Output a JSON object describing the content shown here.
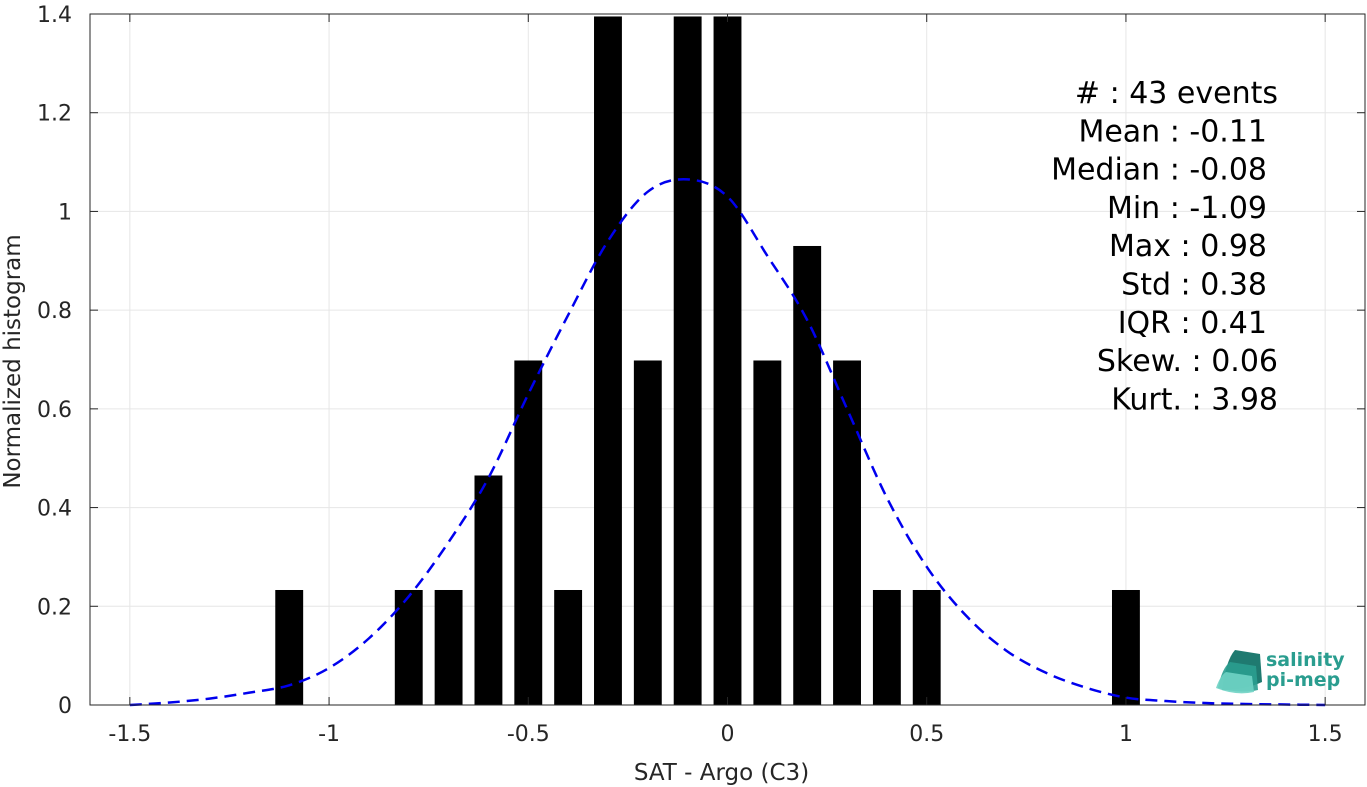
{
  "chart_data": {
    "type": "bar",
    "xlabel": "SAT - Argo (C3)",
    "ylabel": "Normalized histogram",
    "xlim": [
      -1.6,
      1.6
    ],
    "ylim": [
      0,
      1.4
    ],
    "xticks": [
      -1.5,
      -1,
      -0.5,
      0,
      0.5,
      1,
      1.5
    ],
    "xtick_labels": [
      "-1.5",
      "-1",
      "-0.5",
      "0",
      "0.5",
      "1",
      "1.5"
    ],
    "yticks": [
      0,
      0.2,
      0.4,
      0.6,
      0.8,
      1,
      1.2,
      1.4
    ],
    "ytick_labels": [
      "0",
      "0.2",
      "0.4",
      "0.6",
      "0.8",
      "1",
      "1.2",
      "1.4"
    ],
    "grid": true,
    "bar_width": 0.07,
    "bars": [
      {
        "x": -1.1,
        "y": 0.233
      },
      {
        "x": -0.8,
        "y": 0.233
      },
      {
        "x": -0.7,
        "y": 0.233
      },
      {
        "x": -0.6,
        "y": 0.465
      },
      {
        "x": -0.5,
        "y": 0.698
      },
      {
        "x": -0.4,
        "y": 0.233
      },
      {
        "x": -0.3,
        "y": 1.395
      },
      {
        "x": -0.2,
        "y": 0.698
      },
      {
        "x": -0.1,
        "y": 1.395
      },
      {
        "x": 0.0,
        "y": 1.395
      },
      {
        "x": 0.1,
        "y": 0.698
      },
      {
        "x": 0.2,
        "y": 0.93
      },
      {
        "x": 0.3,
        "y": 0.698
      },
      {
        "x": 0.4,
        "y": 0.233
      },
      {
        "x": 0.5,
        "y": 0.233
      },
      {
        "x": 1.0,
        "y": 0.233
      }
    ],
    "fit_curve": {
      "style": "dashed",
      "color": "#0000ee",
      "points": [
        [
          -1.5,
          0.0
        ],
        [
          -1.4,
          0.005
        ],
        [
          -1.3,
          0.013
        ],
        [
          -1.2,
          0.025
        ],
        [
          -1.1,
          0.04
        ],
        [
          -1.0,
          0.075
        ],
        [
          -0.9,
          0.135
        ],
        [
          -0.8,
          0.22
        ],
        [
          -0.7,
          0.33
        ],
        [
          -0.6,
          0.46
        ],
        [
          -0.5,
          0.63
        ],
        [
          -0.4,
          0.79
        ],
        [
          -0.3,
          0.94
        ],
        [
          -0.2,
          1.04
        ],
        [
          -0.1,
          1.065
        ],
        [
          0.0,
          1.03
        ],
        [
          0.1,
          0.91
        ],
        [
          0.2,
          0.78
        ],
        [
          0.3,
          0.6
        ],
        [
          0.4,
          0.42
        ],
        [
          0.5,
          0.28
        ],
        [
          0.6,
          0.18
        ],
        [
          0.7,
          0.11
        ],
        [
          0.8,
          0.065
        ],
        [
          0.9,
          0.035
        ],
        [
          1.0,
          0.015
        ],
        [
          1.1,
          0.008
        ],
        [
          1.2,
          0.004
        ],
        [
          1.3,
          0.002
        ],
        [
          1.4,
          0.001
        ],
        [
          1.5,
          0.0
        ]
      ]
    },
    "annotations": [
      {
        "label": "#  : 43 events",
        "key": "events"
      },
      {
        "label": "Mean : -0.11",
        "key": "mean"
      },
      {
        "label": "Median : -0.08",
        "key": "median"
      },
      {
        "label": "Min : -1.09",
        "key": "min"
      },
      {
        "label": "Max : 0.98",
        "key": "max"
      },
      {
        "label": "Std : 0.38",
        "key": "std"
      },
      {
        "label": "IQR : 0.41",
        "key": "iqr"
      },
      {
        "label": "Skew. : 0.06",
        "key": "skew"
      },
      {
        "label": "Kurt. : 3.98",
        "key": "kurt"
      }
    ]
  },
  "logo": {
    "line1": "salinity",
    "line2": "pi-mep",
    "colors": [
      "#2a9d8f",
      "#1f7a70",
      "#6fd3c4"
    ]
  }
}
